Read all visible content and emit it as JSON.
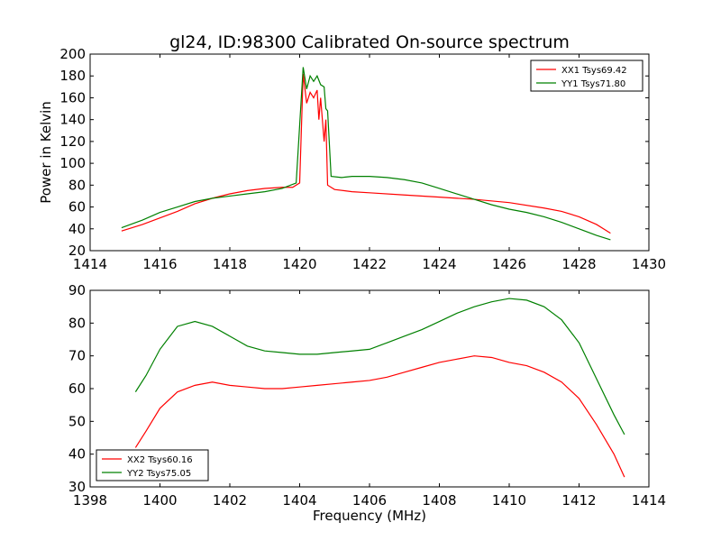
{
  "colors": {
    "red": "#ff0000",
    "green": "#008000"
  },
  "chart_data": [
    {
      "type": "line",
      "title": "gl24, ID:98300 Calibrated On-source spectrum",
      "xlabel": "",
      "ylabel": "Power in Kelvin",
      "xlim": [
        1414,
        1430
      ],
      "ylim": [
        20,
        200
      ],
      "xticks": [
        "1414",
        "1416",
        "1418",
        "1420",
        "1422",
        "1424",
        "1426",
        "1428",
        "1430"
      ],
      "yticks": [
        "20",
        "40",
        "60",
        "80",
        "100",
        "120",
        "140",
        "160",
        "180",
        "200"
      ],
      "legend_position": "top-right",
      "series": [
        {
          "name": "XX1 Tsys69.42",
          "color": "#ff0000",
          "points": [
            [
              1414.9,
              38
            ],
            [
              1415.5,
              44
            ],
            [
              1416,
              50
            ],
            [
              1416.5,
              56
            ],
            [
              1417,
              63
            ],
            [
              1417.5,
              68
            ],
            [
              1418,
              72
            ],
            [
              1418.5,
              75
            ],
            [
              1419,
              77
            ],
            [
              1419.5,
              78
            ],
            [
              1419.8,
              78
            ],
            [
              1420,
              82
            ],
            [
              1420.1,
              182
            ],
            [
              1420.2,
              155
            ],
            [
              1420.3,
              165
            ],
            [
              1420.4,
              160
            ],
            [
              1420.5,
              167
            ],
            [
              1420.55,
              140
            ],
            [
              1420.6,
              160
            ],
            [
              1420.7,
              120
            ],
            [
              1420.75,
              140
            ],
            [
              1420.8,
              80
            ],
            [
              1421,
              76
            ],
            [
              1421.5,
              74
            ],
            [
              1422,
              73
            ],
            [
              1423,
              71
            ],
            [
              1424,
              69
            ],
            [
              1425,
              67
            ],
            [
              1426,
              64
            ],
            [
              1427,
              59
            ],
            [
              1427.5,
              56
            ],
            [
              1428,
              51
            ],
            [
              1428.5,
              44
            ],
            [
              1428.9,
              36
            ]
          ]
        },
        {
          "name": "YY1 Tsys71.80",
          "color": "#008000",
          "points": [
            [
              1414.9,
              41
            ],
            [
              1415.5,
              48
            ],
            [
              1416,
              55
            ],
            [
              1416.5,
              60
            ],
            [
              1417,
              65
            ],
            [
              1417.5,
              68
            ],
            [
              1418,
              70
            ],
            [
              1418.5,
              72
            ],
            [
              1419,
              74
            ],
            [
              1419.5,
              77
            ],
            [
              1419.9,
              82
            ],
            [
              1420.1,
              188
            ],
            [
              1420.2,
              168
            ],
            [
              1420.3,
              180
            ],
            [
              1420.4,
              175
            ],
            [
              1420.5,
              180
            ],
            [
              1420.6,
              172
            ],
            [
              1420.7,
              170
            ],
            [
              1420.75,
              150
            ],
            [
              1420.8,
              148
            ],
            [
              1420.9,
              88
            ],
            [
              1421.2,
              87
            ],
            [
              1421.5,
              88
            ],
            [
              1422,
              88
            ],
            [
              1422.5,
              87
            ],
            [
              1423,
              85
            ],
            [
              1423.5,
              82
            ],
            [
              1424,
              77
            ],
            [
              1424.5,
              72
            ],
            [
              1425,
              67
            ],
            [
              1425.5,
              62
            ],
            [
              1426,
              58
            ],
            [
              1426.5,
              55
            ],
            [
              1427,
              51
            ],
            [
              1427.5,
              46
            ],
            [
              1428,
              40
            ],
            [
              1428.5,
              34
            ],
            [
              1428.9,
              30
            ]
          ]
        }
      ]
    },
    {
      "type": "line",
      "title": "",
      "xlabel": "Frequency (MHz)",
      "ylabel": "",
      "xlim": [
        1398,
        1414
      ],
      "ylim": [
        30,
        90
      ],
      "xticks": [
        "1398",
        "1400",
        "1402",
        "1404",
        "1406",
        "1408",
        "1410",
        "1412",
        "1414"
      ],
      "yticks": [
        "30",
        "40",
        "50",
        "60",
        "70",
        "80",
        "90"
      ],
      "legend_position": "bottom-left",
      "series": [
        {
          "name": "XX2 Tsys60.16",
          "color": "#ff0000",
          "points": [
            [
              1399.3,
              42
            ],
            [
              1399.6,
              47
            ],
            [
              1400,
              54
            ],
            [
              1400.5,
              59
            ],
            [
              1401,
              61
            ],
            [
              1401.5,
              62
            ],
            [
              1402,
              61
            ],
            [
              1402.5,
              60.5
            ],
            [
              1403,
              60
            ],
            [
              1403.5,
              60
            ],
            [
              1404,
              60.5
            ],
            [
              1404.5,
              61
            ],
            [
              1405,
              61.5
            ],
            [
              1405.5,
              62
            ],
            [
              1406,
              62.5
            ],
            [
              1406.5,
              63.5
            ],
            [
              1407,
              65
            ],
            [
              1407.5,
              66.5
            ],
            [
              1408,
              68
            ],
            [
              1408.5,
              69
            ],
            [
              1409,
              70
            ],
            [
              1409.5,
              69.5
            ],
            [
              1410,
              68
            ],
            [
              1410.5,
              67
            ],
            [
              1411,
              65
            ],
            [
              1411.5,
              62
            ],
            [
              1412,
              57
            ],
            [
              1412.5,
              49
            ],
            [
              1413,
              40
            ],
            [
              1413.3,
              33
            ]
          ]
        },
        {
          "name": "YY2 Tsys75.05",
          "color": "#008000",
          "points": [
            [
              1399.3,
              59
            ],
            [
              1399.6,
              64
            ],
            [
              1400,
              72
            ],
            [
              1400.5,
              79
            ],
            [
              1401,
              80.5
            ],
            [
              1401.5,
              79
            ],
            [
              1402,
              76
            ],
            [
              1402.5,
              73
            ],
            [
              1403,
              71.5
            ],
            [
              1403.5,
              71
            ],
            [
              1404,
              70.5
            ],
            [
              1404.5,
              70.5
            ],
            [
              1405,
              71
            ],
            [
              1405.5,
              71.5
            ],
            [
              1406,
              72
            ],
            [
              1406.5,
              74
            ],
            [
              1407,
              76
            ],
            [
              1407.5,
              78
            ],
            [
              1408,
              80.5
            ],
            [
              1408.5,
              83
            ],
            [
              1409,
              85
            ],
            [
              1409.5,
              86.5
            ],
            [
              1410,
              87.5
            ],
            [
              1410.5,
              87
            ],
            [
              1411,
              85
            ],
            [
              1411.5,
              81
            ],
            [
              1412,
              74
            ],
            [
              1412.5,
              63
            ],
            [
              1413,
              52
            ],
            [
              1413.3,
              46
            ]
          ]
        }
      ]
    }
  ]
}
